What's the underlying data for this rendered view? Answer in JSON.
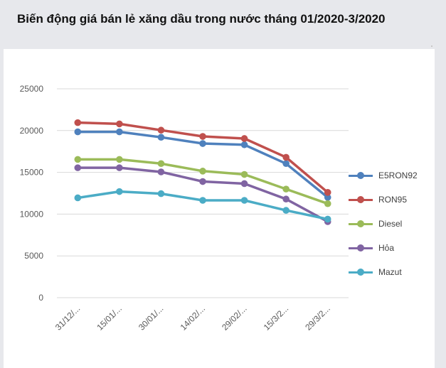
{
  "title": "Biến động giá bán lẻ xăng dầu trong nước tháng 01/2020-3/2020",
  "chart_data": {
    "type": "line",
    "title": "Biến động giá bán lẻ xăng dầu trong nước tháng 01/2020-3/2020",
    "categories": [
      "31/12/...",
      "15/01/...",
      "30/01/...",
      "14/02/...",
      "29/02/...",
      "15/3/2...",
      "29/3/2..."
    ],
    "yticks": [
      "0",
      "5000",
      "10000",
      "15000",
      "20000",
      "25000"
    ],
    "ylim": [
      0,
      25000
    ],
    "grid": true,
    "legend_position": "right",
    "series": [
      {
        "name": "E5RON92",
        "color": "#4f81bd",
        "values": [
          19850,
          19850,
          19200,
          18450,
          18300,
          16050,
          12000
        ]
      },
      {
        "name": "RON95",
        "color": "#c0504d",
        "values": [
          20950,
          20800,
          20050,
          19300,
          19050,
          16800,
          12600
        ]
      },
      {
        "name": "Diesel",
        "color": "#9bbb59",
        "values": [
          16550,
          16550,
          16050,
          15150,
          14750,
          13000,
          11250
        ]
      },
      {
        "name": "Hỏa",
        "color": "#8064a2",
        "values": [
          15550,
          15550,
          15050,
          13900,
          13650,
          11800,
          9100
        ]
      },
      {
        "name": "Mazut",
        "color": "#4bacc6",
        "values": [
          11950,
          12700,
          12450,
          11650,
          11650,
          10450,
          9400
        ]
      }
    ]
  }
}
